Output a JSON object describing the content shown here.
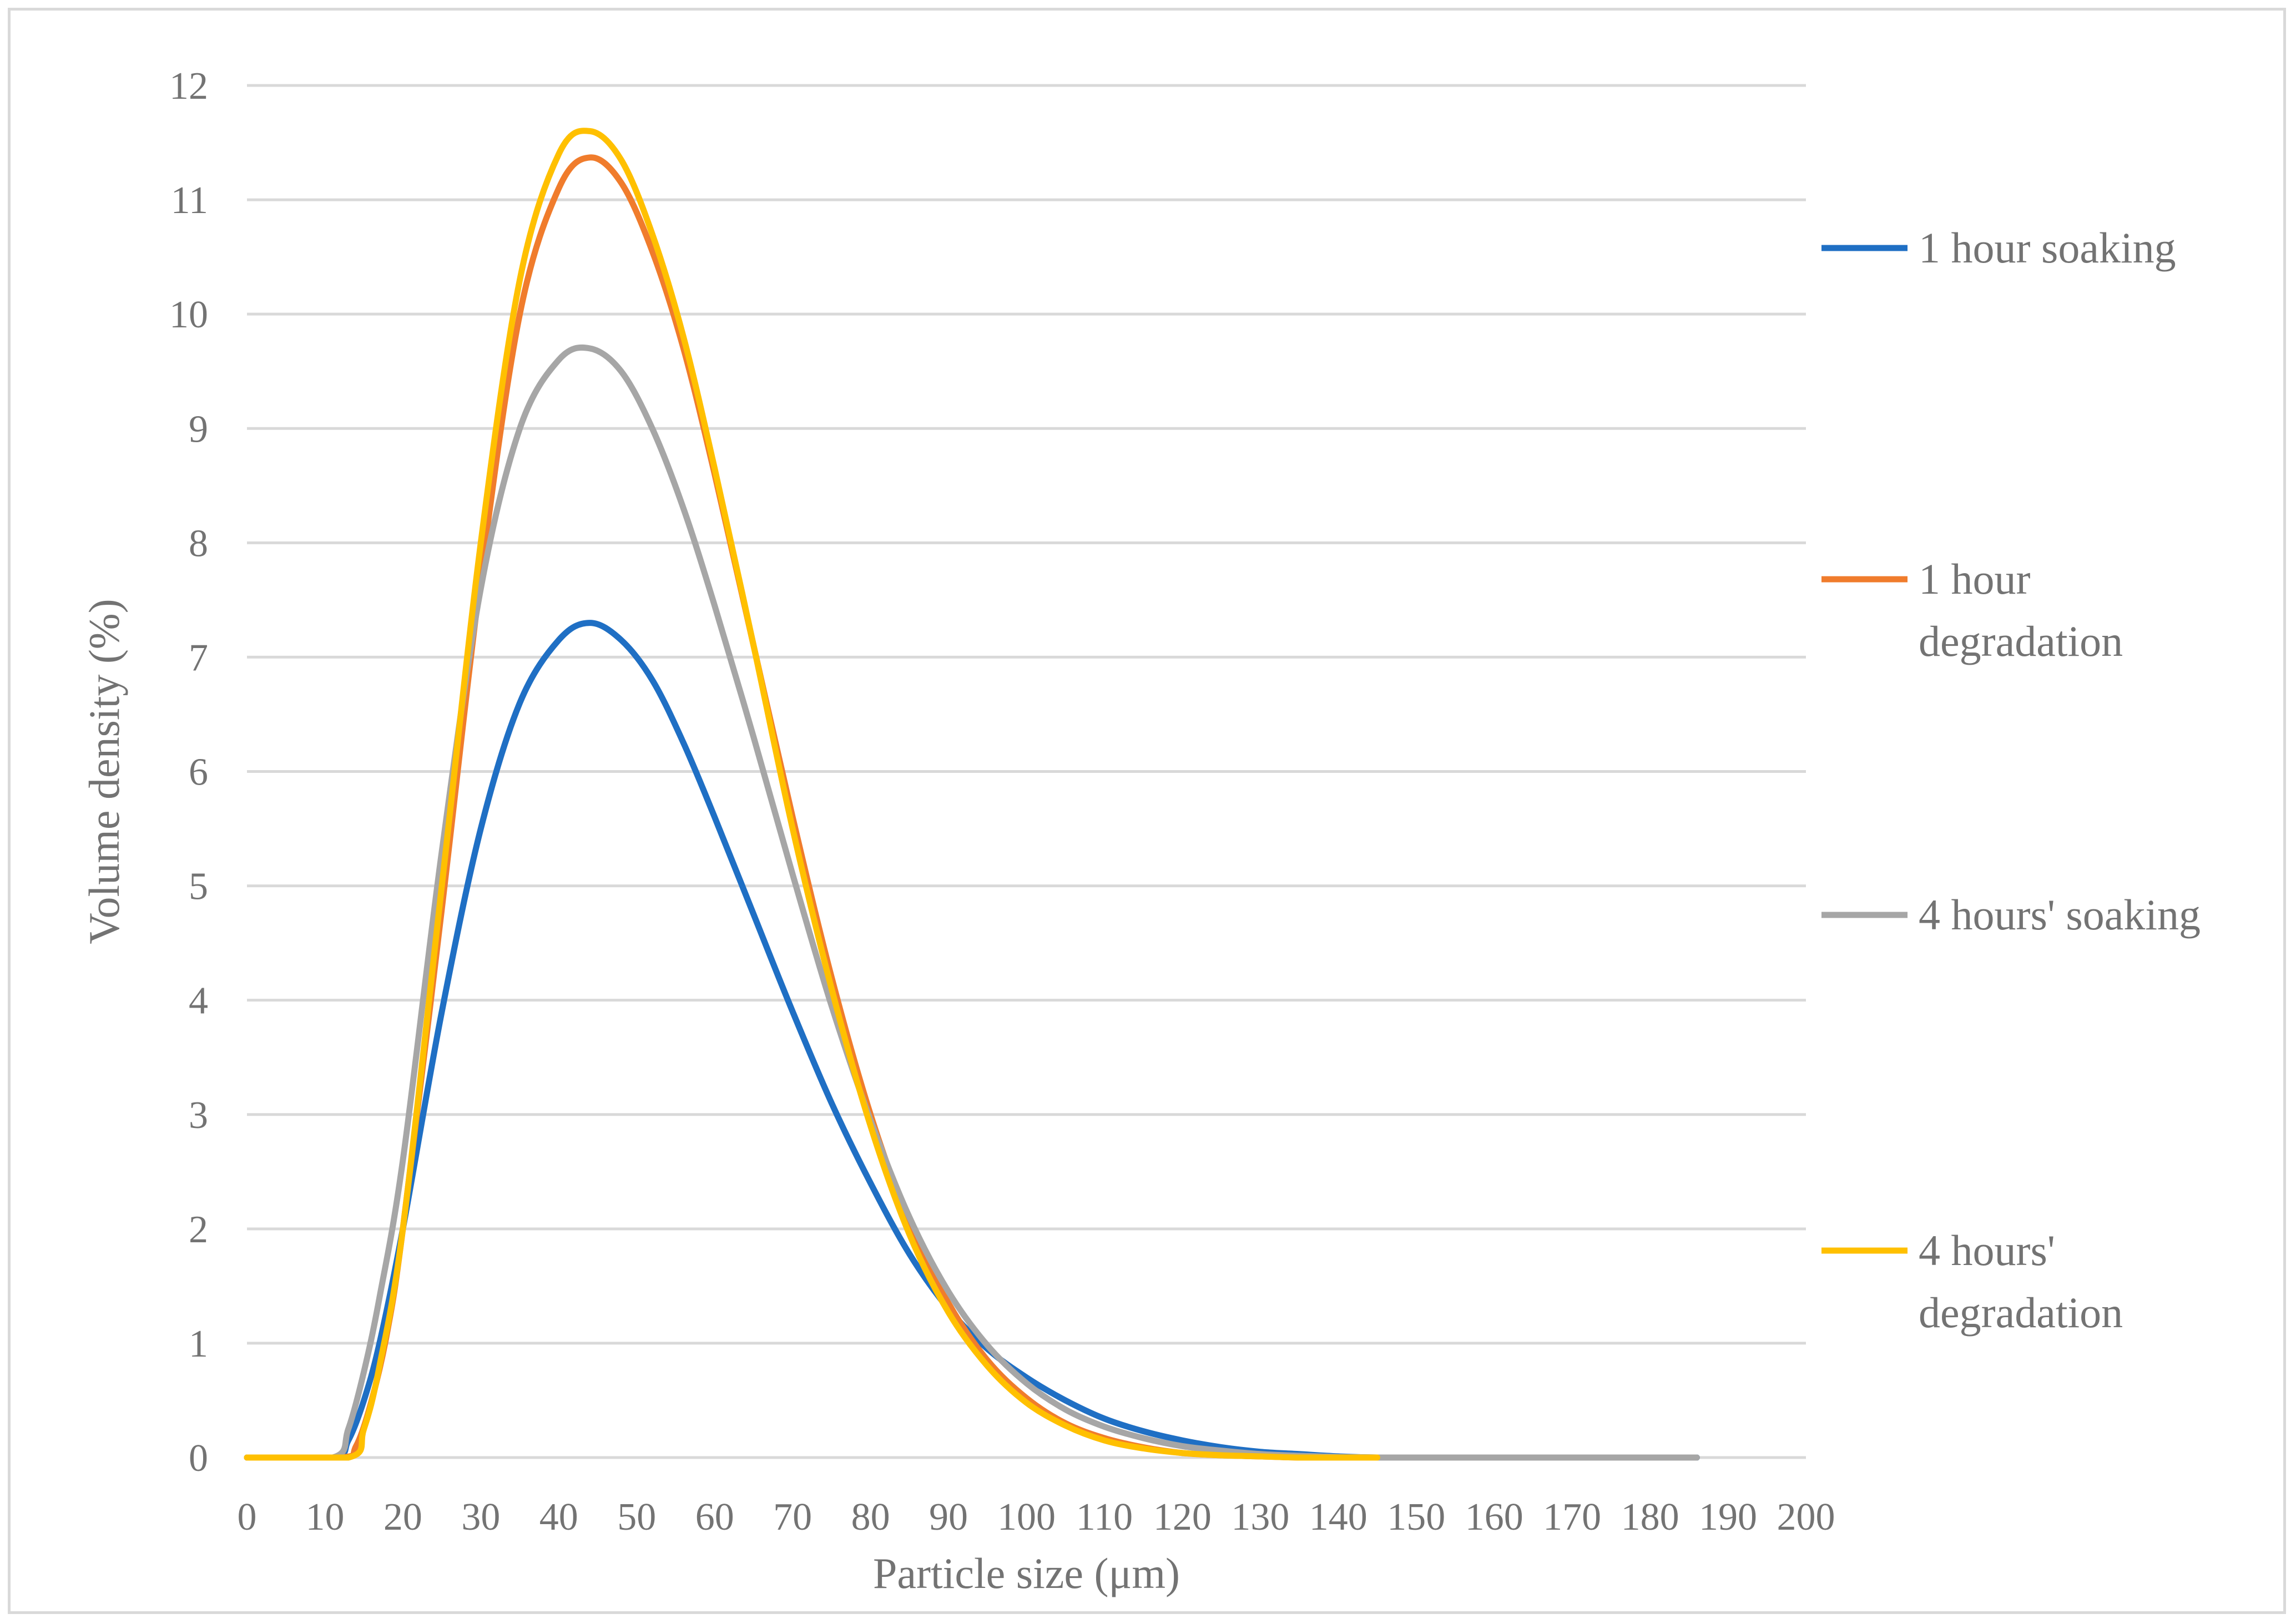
{
  "chart_data": {
    "type": "line",
    "title": "",
    "xlabel": "Particle size (μm)",
    "ylabel": "Volume density (%)",
    "xlim": [
      0,
      200
    ],
    "ylim": [
      0,
      12
    ],
    "xticks": [
      "0",
      "10",
      "20",
      "30",
      "40",
      "50",
      "60",
      "70",
      "80",
      "90",
      "100",
      "110",
      "120",
      "130",
      "140",
      "150",
      "160",
      "170",
      "180",
      "190",
      "200"
    ],
    "yticks": [
      "0",
      "1",
      "2",
      "3",
      "4",
      "5",
      "6",
      "7",
      "8",
      "9",
      "10",
      "11",
      "12"
    ],
    "grid": "horizontal",
    "legend_position": "right",
    "series": [
      {
        "name": "1 hour soaking",
        "legend_lines": [
          "1 hour soaking"
        ],
        "color": "#1f6fc4",
        "x": [
          0,
          11,
          13,
          15,
          17,
          20,
          25,
          30,
          35,
          40,
          44,
          48,
          52,
          56,
          60,
          65,
          70,
          75,
          80,
          85,
          90,
          95,
          100,
          105,
          110,
          115,
          120,
          125,
          130,
          135,
          140,
          145,
          150,
          160,
          170,
          180,
          186
        ],
        "y": [
          0,
          0,
          0.15,
          0.5,
          1.0,
          2.0,
          3.9,
          5.5,
          6.6,
          7.15,
          7.3,
          7.15,
          6.8,
          6.25,
          5.6,
          4.75,
          3.9,
          3.1,
          2.4,
          1.78,
          1.3,
          0.95,
          0.7,
          0.5,
          0.34,
          0.23,
          0.15,
          0.09,
          0.05,
          0.03,
          0.01,
          0,
          0,
          0,
          0,
          0,
          0
        ]
      },
      {
        "name": "1 hour degradation",
        "legend_lines": [
          "1 hour",
          "degradation"
        ],
        "color": "#f07c2c",
        "x": [
          0,
          12,
          14,
          16,
          18,
          20,
          25,
          30,
          35,
          40,
          44,
          48,
          52,
          56,
          60,
          65,
          70,
          75,
          80,
          85,
          90,
          95,
          100,
          105,
          110,
          115,
          120,
          125,
          130,
          135,
          140,
          145
        ],
        "y": [
          0,
          0,
          0.1,
          0.5,
          1.1,
          2.0,
          4.8,
          7.7,
          10.0,
          11.1,
          11.37,
          11.15,
          10.55,
          9.7,
          8.6,
          7.1,
          5.6,
          4.2,
          3.0,
          2.05,
          1.35,
          0.85,
          0.52,
          0.3,
          0.17,
          0.09,
          0.04,
          0.02,
          0.01,
          0,
          0,
          0
        ]
      },
      {
        "name": "4 hours' soaking",
        "legend_lines": [
          "4 hours' soaking"
        ],
        "color": "#a6a6a6",
        "x": [
          0,
          11,
          13,
          15,
          17,
          20,
          25,
          30,
          35,
          40,
          44,
          48,
          52,
          56,
          60,
          65,
          70,
          75,
          80,
          85,
          90,
          95,
          100,
          105,
          110,
          115,
          120,
          125,
          130,
          135,
          140,
          145,
          150,
          160,
          170,
          180,
          186
        ],
        "y": [
          0,
          0,
          0.25,
          0.75,
          1.4,
          2.6,
          5.3,
          7.6,
          9.0,
          9.6,
          9.7,
          9.5,
          9.0,
          8.3,
          7.45,
          6.3,
          5.1,
          3.95,
          2.95,
          2.1,
          1.45,
          0.98,
          0.65,
          0.42,
          0.27,
          0.17,
          0.1,
          0.06,
          0.03,
          0.015,
          0.005,
          0,
          0,
          0,
          0,
          0,
          0
        ]
      },
      {
        "name": "4 hours' degradation",
        "legend_lines": [
          "4 hours'",
          "degradation"
        ],
        "color": "#ffc000",
        "x": [
          0,
          13,
          15,
          17,
          20,
          25,
          30,
          35,
          40,
          44,
          48,
          52,
          56,
          60,
          65,
          70,
          75,
          80,
          85,
          90,
          95,
          100,
          105,
          110,
          115,
          120,
          125,
          130,
          135,
          140,
          145
        ],
        "y": [
          0,
          0,
          0.25,
          0.8,
          2.0,
          5.0,
          8.0,
          10.3,
          11.4,
          11.6,
          11.35,
          10.7,
          9.8,
          8.65,
          7.1,
          5.5,
          4.1,
          2.9,
          1.95,
          1.27,
          0.8,
          0.48,
          0.28,
          0.15,
          0.08,
          0.04,
          0.02,
          0.01,
          0,
          0,
          0
        ]
      }
    ]
  }
}
